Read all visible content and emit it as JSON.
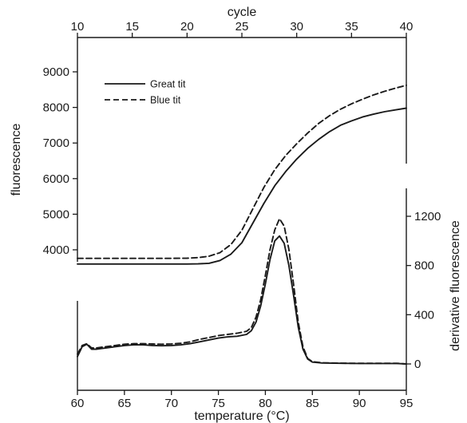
{
  "chart_data": [
    {
      "type": "line",
      "name": "amplification",
      "x_axis": {
        "label": "cycle",
        "position": "top",
        "range": [
          10,
          40
        ],
        "ticks": [
          10,
          15,
          20,
          25,
          30,
          35,
          40
        ]
      },
      "y_axis": {
        "label": "fluorescence",
        "position": "left",
        "range": [
          3000,
          9700
        ],
        "ticks": [
          4000,
          5000,
          6000,
          7000,
          8000,
          9000
        ]
      },
      "legend": {
        "placement": "top-left"
      },
      "series": [
        {
          "name": "Great tit",
          "style": "solid",
          "points": [
            [
              10,
              3600
            ],
            [
              14,
              3600
            ],
            [
              18,
              3600
            ],
            [
              20,
              3600
            ],
            [
              21,
              3605
            ],
            [
              22,
              3620
            ],
            [
              23,
              3700
            ],
            [
              24,
              3880
            ],
            [
              25,
              4200
            ],
            [
              26,
              4750
            ],
            [
              27,
              5300
            ],
            [
              28,
              5800
            ],
            [
              29,
              6200
            ],
            [
              30,
              6550
            ],
            [
              31,
              6850
            ],
            [
              32,
              7100
            ],
            [
              33,
              7320
            ],
            [
              34,
              7500
            ],
            [
              35,
              7620
            ],
            [
              36,
              7730
            ],
            [
              37,
              7810
            ],
            [
              38,
              7880
            ],
            [
              39,
              7930
            ],
            [
              40,
              7980
            ]
          ]
        },
        {
          "name": "Blue tit",
          "style": "dashed",
          "points": [
            [
              10,
              3760
            ],
            [
              14,
              3760
            ],
            [
              18,
              3760
            ],
            [
              20,
              3765
            ],
            [
              21,
              3780
            ],
            [
              22,
              3820
            ],
            [
              23,
              3920
            ],
            [
              24,
              4150
            ],
            [
              25,
              4550
            ],
            [
              26,
              5150
            ],
            [
              27,
              5750
            ],
            [
              28,
              6250
            ],
            [
              29,
              6650
            ],
            [
              30,
              6980
            ],
            [
              31,
              7280
            ],
            [
              32,
              7550
            ],
            [
              33,
              7770
            ],
            [
              34,
              7950
            ],
            [
              35,
              8100
            ],
            [
              36,
              8230
            ],
            [
              37,
              8350
            ],
            [
              38,
              8450
            ],
            [
              39,
              8540
            ],
            [
              40,
              8620
            ]
          ]
        }
      ]
    },
    {
      "type": "line",
      "name": "melt",
      "x_axis": {
        "label": "temperature (°C)",
        "position": "bottom",
        "range": [
          60,
          95
        ],
        "ticks": [
          60,
          65,
          70,
          75,
          80,
          85,
          90,
          95
        ]
      },
      "y_axis": {
        "label": "derivative fluorescence",
        "position": "right",
        "range": [
          -50,
          1450
        ],
        "ticks": [
          0,
          400,
          800,
          1200
        ]
      },
      "series": [
        {
          "name": "Great tit",
          "style": "solid",
          "points": [
            [
              60,
              60
            ],
            [
              60.5,
              140
            ],
            [
              61,
              160
            ],
            [
              61.5,
              120
            ],
            [
              62,
              120
            ],
            [
              63,
              130
            ],
            [
              64,
              140
            ],
            [
              65,
              150
            ],
            [
              66,
              155
            ],
            [
              67,
              155
            ],
            [
              68,
              150
            ],
            [
              69,
              148
            ],
            [
              70,
              150
            ],
            [
              71,
              155
            ],
            [
              72,
              165
            ],
            [
              73,
              180
            ],
            [
              74,
              195
            ],
            [
              75,
              210
            ],
            [
              76,
              220
            ],
            [
              77,
              225
            ],
            [
              78,
              240
            ],
            [
              78.5,
              270
            ],
            [
              79,
              340
            ],
            [
              79.5,
              470
            ],
            [
              80,
              650
            ],
            [
              80.5,
              850
            ],
            [
              81,
              1000
            ],
            [
              81.5,
              1040
            ],
            [
              82,
              980
            ],
            [
              82.5,
              800
            ],
            [
              83,
              560
            ],
            [
              83.5,
              300
            ],
            [
              84,
              120
            ],
            [
              84.5,
              40
            ],
            [
              85,
              15
            ],
            [
              86,
              8
            ],
            [
              88,
              5
            ],
            [
              90,
              4
            ],
            [
              92,
              4
            ],
            [
              94,
              4
            ],
            [
              95,
              0
            ]
          ]
        },
        {
          "name": "Blue tit",
          "style": "dashed",
          "points": [
            [
              60,
              80
            ],
            [
              60.5,
              150
            ],
            [
              61,
              165
            ],
            [
              61.5,
              130
            ],
            [
              62,
              130
            ],
            [
              63,
              140
            ],
            [
              64,
              150
            ],
            [
              65,
              160
            ],
            [
              66,
              165
            ],
            [
              67,
              165
            ],
            [
              68,
              162
            ],
            [
              69,
              160
            ],
            [
              70,
              163
            ],
            [
              71,
              168
            ],
            [
              72,
              180
            ],
            [
              73,
              200
            ],
            [
              74,
              215
            ],
            [
              75,
              230
            ],
            [
              76,
              240
            ],
            [
              77,
              250
            ],
            [
              78,
              265
            ],
            [
              78.5,
              295
            ],
            [
              79,
              380
            ],
            [
              79.5,
              520
            ],
            [
              80,
              720
            ],
            [
              80.5,
              930
            ],
            [
              81,
              1090
            ],
            [
              81.5,
              1180
            ],
            [
              82,
              1120
            ],
            [
              82.5,
              930
            ],
            [
              83,
              650
            ],
            [
              83.5,
              340
            ],
            [
              84,
              140
            ],
            [
              84.5,
              45
            ],
            [
              85,
              18
            ],
            [
              86,
              10
            ],
            [
              88,
              6
            ],
            [
              90,
              5
            ],
            [
              92,
              5
            ],
            [
              94,
              5
            ],
            [
              95,
              0
            ]
          ]
        }
      ]
    }
  ]
}
